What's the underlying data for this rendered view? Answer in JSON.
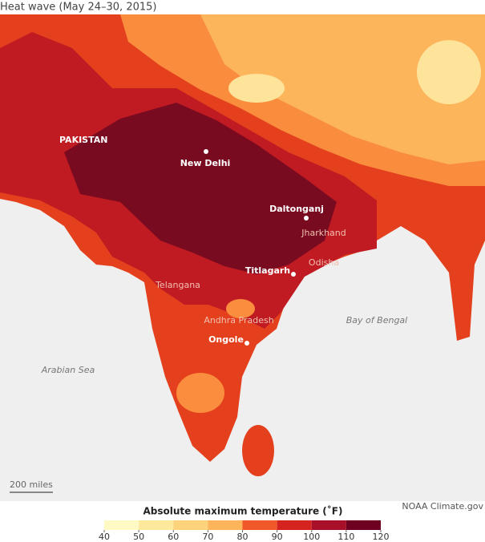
{
  "title": "Heat wave (May 24–30, 2015)",
  "map": {
    "countries": [
      "PAKISTAN"
    ],
    "cities": [
      "New Delhi",
      "Daltonganj",
      "Titlagarh",
      "Ongole"
    ],
    "states": [
      "Jharkhand",
      "Odisha",
      "Telangana",
      "Andhra Pradesh"
    ],
    "water": [
      "Bay of Bengal",
      "Arabian Sea"
    ]
  },
  "scale_bar": "200 miles",
  "credit": "NOAA Climate.gov",
  "legend": {
    "title": "Absolute maximum temperature (˚F)",
    "ticks": [
      40,
      50,
      60,
      70,
      80,
      90,
      100,
      110,
      120
    ],
    "colors": [
      "#fff9c4",
      "#fee89c",
      "#fed37b",
      "#fdb45b",
      "#fb8e3e",
      "#f0582a",
      "#d52420",
      "#a8102a",
      "#6f0022"
    ]
  }
}
